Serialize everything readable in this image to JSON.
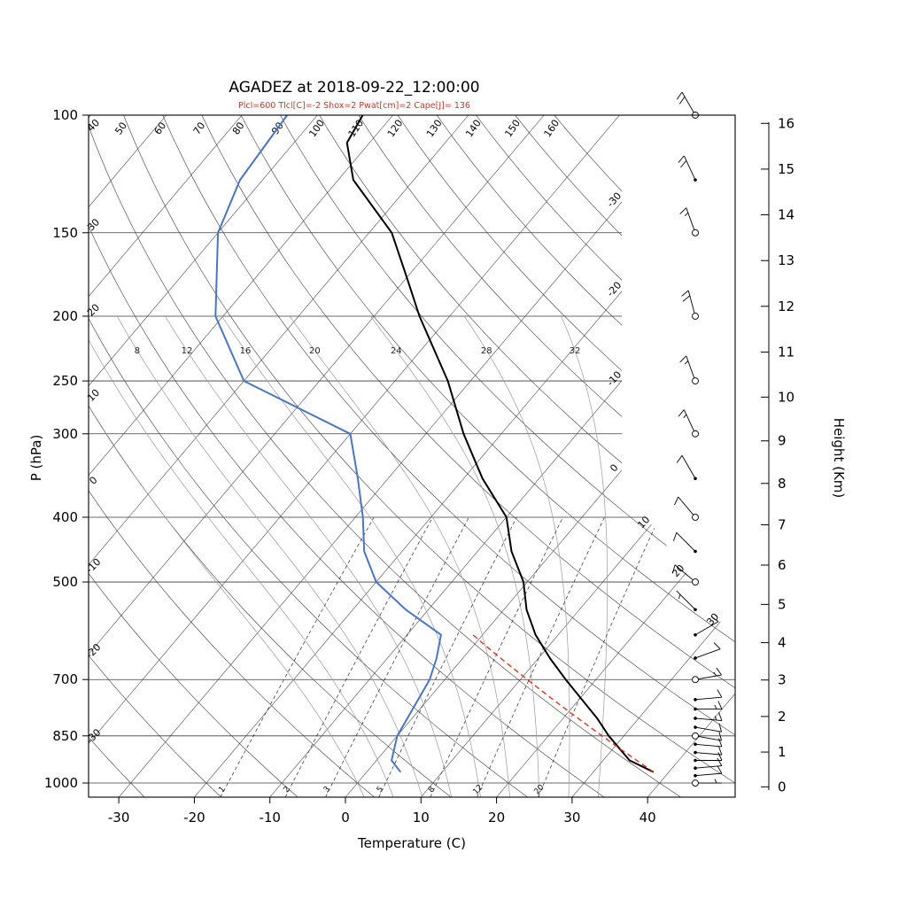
{
  "chart_data": {
    "type": "skewt_log_p_sounding",
    "title": "AGADEZ at 2018-09-22_12:00:00",
    "subtitle": "Plcl=600 Tlcl[C]=-2 Shox=2 Pwat[cm]=2 Cape[J]= 136",
    "station": "AGADEZ",
    "datetime_label": "2018-09-22_12:00:00",
    "indices": {
      "Plcl": 600,
      "Tlcl_C": -2,
      "Shox": 2,
      "Pwat_cm": 2,
      "Cape_J": 136
    },
    "axes": {
      "xlabel": "Temperature (C)",
      "ylabel_left": "P (hPa)",
      "ylabel_right": "Height (Km)",
      "pressure_ticks_hpa": [
        100,
        150,
        200,
        250,
        300,
        400,
        500,
        700,
        850,
        1000
      ],
      "temperature_ticks_c": [
        -30,
        -20,
        -10,
        0,
        10,
        20,
        30,
        40
      ],
      "height_ticks_km": [
        0,
        1,
        2,
        3,
        4,
        5,
        6,
        7,
        8,
        9,
        10,
        11,
        12,
        13,
        14,
        15,
        16
      ],
      "pressure_range_hpa": [
        100,
        1050
      ]
    },
    "grid": {
      "isotherms_c": {
        "min": -110,
        "max": 40,
        "step": 10
      },
      "isotherm_edge_labels_c": [
        -30,
        -20,
        -10,
        0,
        10,
        20,
        30
      ],
      "dry_adiabats_c": {
        "min": -30,
        "max": 160,
        "step": 10
      },
      "moist_adiabats_c": [
        0,
        4,
        8,
        12,
        16,
        20,
        24,
        28,
        32
      ],
      "moist_adiabat_labels_c": [
        8,
        12,
        16,
        20,
        24,
        28,
        32
      ],
      "mixing_ratio_g_kg": [
        1,
        2,
        3,
        5,
        8,
        12,
        20
      ]
    },
    "sounding": {
      "temperature": {
        "pressure_hpa": [
          963,
          925,
          850,
          800,
          700,
          650,
          600,
          550,
          500,
          450,
          400,
          350,
          300,
          250,
          200,
          175,
          150,
          125,
          110,
          100
        ],
        "temp_c": [
          38,
          33.5,
          28,
          24.5,
          16,
          11.5,
          7,
          3,
          -0.5,
          -5.5,
          -10,
          -17.5,
          -25,
          -33,
          -44,
          -50,
          -57,
          -68,
          -73,
          -74
        ]
      },
      "dewpoint": {
        "pressure_hpa": [
          963,
          925,
          850,
          700,
          650,
          600,
          550,
          500,
          450,
          400,
          350,
          300,
          250,
          200,
          150,
          125,
          100
        ],
        "temp_c": [
          4.5,
          2,
          0,
          -2,
          -3.5,
          -5.5,
          -13,
          -20,
          -25,
          -29,
          -34,
          -40,
          -60,
          -71,
          -80,
          -83,
          -84
        ]
      }
    },
    "parcel": {
      "surface_pressure_hpa": 963,
      "surface_temp_c": 38,
      "lcl_pressure_hpa": 600,
      "lcl_temp_c": -1.3
    },
    "wind_barbs": [
      {
        "p": 1000,
        "dir": 90,
        "spd_kt": 5,
        "marker": "open"
      },
      {
        "p": 975,
        "dir": 85,
        "spd_kt": 10,
        "marker": "dot"
      },
      {
        "p": 950,
        "dir": 85,
        "spd_kt": 10,
        "marker": "dot"
      },
      {
        "p": 925,
        "dir": 90,
        "spd_kt": 10,
        "marker": "dot"
      },
      {
        "p": 900,
        "dir": 95,
        "spd_kt": 10,
        "marker": "dot"
      },
      {
        "p": 875,
        "dir": 95,
        "spd_kt": 10,
        "marker": "dot"
      },
      {
        "p": 850,
        "dir": 100,
        "spd_kt": 10,
        "marker": "open"
      },
      {
        "p": 825,
        "dir": 100,
        "spd_kt": 10,
        "marker": "dot"
      },
      {
        "p": 800,
        "dir": 95,
        "spd_kt": 15,
        "marker": "dot"
      },
      {
        "p": 775,
        "dir": 90,
        "spd_kt": 15,
        "marker": "dot"
      },
      {
        "p": 750,
        "dir": 85,
        "spd_kt": 10,
        "marker": "dot"
      },
      {
        "p": 700,
        "dir": 80,
        "spd_kt": 15,
        "marker": "open"
      },
      {
        "p": 650,
        "dir": 70,
        "spd_kt": 10,
        "marker": "dot"
      },
      {
        "p": 600,
        "dir": 60,
        "spd_kt": 10,
        "marker": "dot"
      },
      {
        "p": 550,
        "dir": 315,
        "spd_kt": 5,
        "marker": "dot"
      },
      {
        "p": 500,
        "dir": 310,
        "spd_kt": 10,
        "marker": "open"
      },
      {
        "p": 450,
        "dir": 315,
        "spd_kt": 10,
        "marker": "dot"
      },
      {
        "p": 400,
        "dir": 320,
        "spd_kt": 10,
        "marker": "open"
      },
      {
        "p": 350,
        "dir": 330,
        "spd_kt": 10,
        "marker": "dot"
      },
      {
        "p": 300,
        "dir": 335,
        "spd_kt": 15,
        "marker": "open"
      },
      {
        "p": 250,
        "dir": 340,
        "spd_kt": 15,
        "marker": "open"
      },
      {
        "p": 200,
        "dir": 345,
        "spd_kt": 20,
        "marker": "open"
      },
      {
        "p": 150,
        "dir": 340,
        "spd_kt": 15,
        "marker": "open"
      },
      {
        "p": 125,
        "dir": 335,
        "spd_kt": 20,
        "marker": "dot"
      },
      {
        "p": 100,
        "dir": 330,
        "spd_kt": 20,
        "marker": "open"
      }
    ],
    "colors": {
      "temperature_line": "#000000",
      "dewpoint_line": "#4a74c9",
      "parcel_dry_line": "#e0301e",
      "subtitle_text": "#c0392b",
      "grid_line": "#3a3a3a",
      "moist_adiabat_line": "#9a9a9a",
      "mixing_line": "#2a2a2a",
      "axis_text": "#000000"
    }
  }
}
